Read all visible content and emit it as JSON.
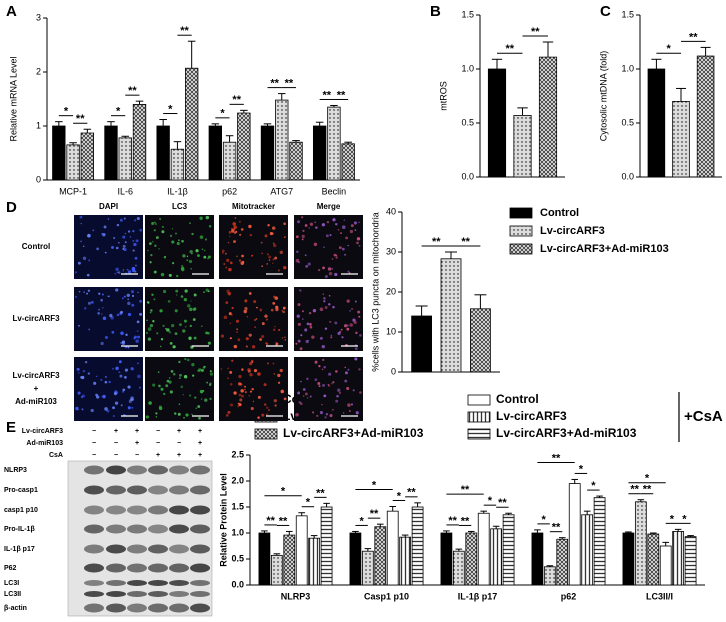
{
  "panel_labels": [
    "A",
    "B",
    "C",
    "D",
    "E"
  ],
  "microscopy": {
    "columns": [
      "DAPI",
      "LC3",
      "Mitotracker",
      "Merge"
    ],
    "rows": [
      [
        "Control"
      ],
      [
        "Lv-circARF3"
      ],
      [
        "Lv-circARF3",
        "+",
        "Ad-miR103"
      ]
    ]
  },
  "western_blot": {
    "conditions": [
      {
        "label": "Lv-circARF3",
        "signs": [
          "−",
          "+",
          "+",
          "−",
          "+",
          "+"
        ]
      },
      {
        "label": "Ad-miR103",
        "signs": [
          "−",
          "−",
          "+",
          "−",
          "−",
          "+"
        ]
      },
      {
        "label": "CsA",
        "signs": [
          "−",
          "−",
          "−",
          "+",
          "+",
          "+"
        ]
      }
    ],
    "bands": [
      "NLRP3",
      "Pro-casp1",
      "casp1 p10",
      "Pro-IL-1β",
      "IL-1β p17",
      "P62",
      "LC3I",
      "LC3II",
      "β-actin"
    ]
  },
  "chart_data": [
    {
      "type": "bar",
      "ylabel": "Relative mRNA Level",
      "categories": [
        "MCP-1",
        "IL-6",
        "IL-1β",
        "p62",
        "ATG7",
        "Beclin"
      ],
      "series": [
        {
          "name": "Control",
          "color": "#000000",
          "pattern": "solid",
          "values": [
            1.0,
            1.0,
            1.0,
            1.0,
            1.0,
            1.0
          ],
          "errors": [
            0.08,
            0.08,
            0.12,
            0.04,
            0.04,
            0.07
          ]
        },
        {
          "name": "Lv-circARF3",
          "color": "#dcdcdc",
          "pattern": "dots",
          "values": [
            0.65,
            0.78,
            0.57,
            0.7,
            1.48,
            1.35
          ],
          "errors": [
            0.04,
            0.03,
            0.14,
            0.12,
            0.12,
            0.03
          ]
        },
        {
          "name": "Lv-circARF3+Ad-miR103",
          "color": "#444444",
          "pattern": "crosshatch",
          "values": [
            0.87,
            1.4,
            2.07,
            1.24,
            0.7,
            0.67
          ],
          "errors": [
            0.07,
            0.06,
            0.5,
            0.05,
            0.03,
            0.03
          ]
        }
      ],
      "significance": [
        [
          "*",
          "**"
        ],
        [
          "*",
          "**"
        ],
        [
          "*",
          "**"
        ],
        [
          "*",
          "**"
        ],
        [
          "**",
          "**"
        ],
        [
          "**",
          "**"
        ]
      ],
      "ylim": [
        0,
        3
      ],
      "yticks": [
        0,
        1,
        2,
        3
      ]
    },
    {
      "type": "bar",
      "ylabel": "mtROS",
      "series": [
        {
          "color": "#000000",
          "pattern": "solid",
          "values": [
            1.0
          ],
          "errors": [
            0.09
          ]
        },
        {
          "color": "#dcdcdc",
          "pattern": "dots",
          "values": [
            0.57
          ],
          "errors": [
            0.07
          ]
        },
        {
          "color": "#444444",
          "pattern": "crosshatch",
          "values": [
            1.11
          ],
          "errors": [
            0.14
          ]
        }
      ],
      "significance": [
        [
          "**",
          "**"
        ]
      ],
      "ylim": [
        0,
        1.5
      ],
      "yticks": [
        {
          "value": 0,
          "label": "0.0"
        },
        0.5,
        {
          "value": 1,
          "label": "1.0"
        },
        1.5
      ]
    },
    {
      "type": "bar",
      "ylabel": "Cytosolic mtDNA (fold)",
      "series": [
        {
          "color": "#000000",
          "pattern": "solid",
          "values": [
            1.0
          ],
          "errors": [
            0.09
          ]
        },
        {
          "color": "#dcdcdc",
          "pattern": "dots",
          "values": [
            0.7
          ],
          "errors": [
            0.12
          ]
        },
        {
          "color": "#444444",
          "pattern": "crosshatch",
          "values": [
            1.12
          ],
          "errors": [
            0.08
          ]
        }
      ],
      "significance": [
        [
          "*",
          "**"
        ]
      ],
      "ylim": [
        0,
        1.5
      ],
      "yticks": [
        {
          "value": 0,
          "label": "0.0"
        },
        0.5,
        {
          "value": 1,
          "label": "1.0"
        },
        1.5
      ]
    },
    {
      "type": "bar",
      "ylabel": "%cells with LC3 puncta on mitochondria",
      "series": [
        {
          "color": "#000000",
          "pattern": "solid",
          "values": [
            14
          ],
          "errors": [
            2.5
          ]
        },
        {
          "color": "#dcdcdc",
          "pattern": "dots",
          "values": [
            28.3
          ],
          "errors": [
            1.7
          ]
        },
        {
          "color": "#444444",
          "pattern": "crosshatch",
          "values": [
            15.8
          ],
          "errors": [
            3.5
          ]
        }
      ],
      "significance": [
        [
          "**",
          "**"
        ]
      ],
      "ylim": [
        0,
        40
      ],
      "yticks": [
        0,
        10,
        20,
        30,
        40
      ]
    },
    {
      "type": "bar",
      "ylabel": "Relative Protein Level",
      "csa_label": "+CsA",
      "categories": [
        "NLRP3",
        "Casp1 p10",
        "IL-1β p17",
        "p62",
        "LC3II/I"
      ],
      "series": [
        {
          "name": "Control",
          "color": "#000000",
          "pattern": "solid",
          "values": [
            1.0,
            1.0,
            1.0,
            1.0,
            1.0
          ],
          "errors": [
            0.04,
            0.03,
            0.04,
            0.06,
            0.02
          ]
        },
        {
          "name": "Lv-circARF3",
          "color": "#dcdcdc",
          "pattern": "dots",
          "values": [
            0.57,
            0.65,
            0.65,
            0.35,
            1.6
          ],
          "errors": [
            0.03,
            0.05,
            0.04,
            0.02,
            0.04
          ]
        },
        {
          "name": "Lv-circARF3+Ad-miR103",
          "color": "#444444",
          "pattern": "crosshatch",
          "values": [
            0.96,
            1.12,
            1.0,
            0.88,
            0.98
          ],
          "errors": [
            0.07,
            0.05,
            0.03,
            0.03,
            0.02
          ]
        },
        {
          "name": "Control",
          "color": "#ffffff",
          "pattern": "open",
          "values": [
            1.33,
            1.42,
            1.38,
            1.95,
            0.75
          ],
          "errors": [
            0.06,
            0.09,
            0.04,
            0.08,
            0.07
          ]
        },
        {
          "name": "Lv-circARF3",
          "color": "#333333",
          "pattern": "vlines",
          "values": [
            0.9,
            0.92,
            1.08,
            1.35,
            1.03
          ],
          "errors": [
            0.05,
            0.04,
            0.05,
            0.07,
            0.04
          ]
        },
        {
          "name": "Lv-circARF3+Ad-miR103",
          "color": "#333333",
          "pattern": "hlines",
          "values": [
            1.5,
            1.5,
            1.35,
            1.68,
            0.93
          ],
          "errors": [
            0.07,
            0.08,
            0.03,
            0.03,
            0.02
          ]
        }
      ],
      "significance": [
        [
          "**",
          "**",
          "*",
          "*",
          "**"
        ],
        [
          "*",
          "**",
          "*",
          "*",
          "**"
        ],
        [
          "**",
          "**",
          "**",
          "*",
          "**"
        ],
        [
          "*",
          "**",
          "**",
          "*",
          "*"
        ],
        [
          "**",
          "**",
          "*",
          "*",
          "*"
        ]
      ],
      "ylim": [
        0,
        2.5
      ],
      "yticks": [
        {
          "value": 0,
          "label": "0.0"
        },
        0.5,
        {
          "value": 1,
          "label": "1.0"
        },
        1.5,
        {
          "value": 2,
          "label": "2.0"
        },
        2.5
      ]
    }
  ]
}
